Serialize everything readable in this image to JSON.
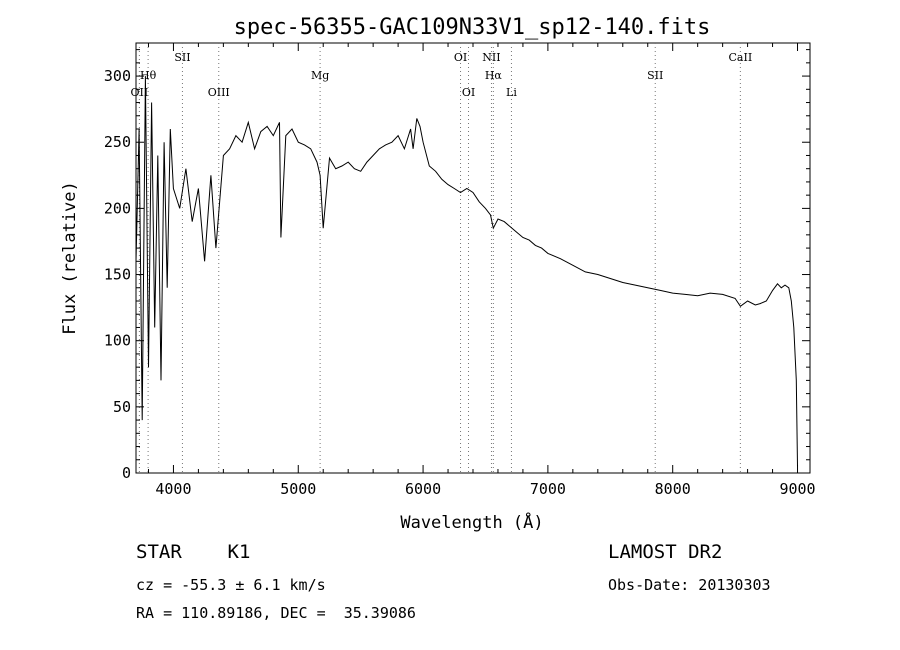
{
  "chart_data": {
    "type": "line",
    "title": "spec-56355-GAC109N33V1_sp12-140.fits",
    "xlabel": "Wavelength (Å)",
    "ylabel": "Flux (relative)",
    "xlim": [
      3700,
      9100
    ],
    "ylim": [
      0,
      325
    ],
    "xticks": [
      4000,
      5000,
      6000,
      7000,
      8000,
      9000
    ],
    "yticks": [
      0,
      50,
      100,
      150,
      200,
      250,
      300
    ],
    "series": [
      {
        "x": [
          3700,
          3725,
          3750,
          3775,
          3800,
          3825,
          3850,
          3875,
          3900,
          3925,
          3950,
          3975,
          4000,
          4050,
          4100,
          4150,
          4200,
          4250,
          4300,
          4340,
          4400,
          4450,
          4500,
          4550,
          4600,
          4650,
          4700,
          4750,
          4800,
          4850,
          4861,
          4900,
          4950,
          5000,
          5050,
          5100,
          5150,
          5175,
          5200,
          5250,
          5300,
          5350,
          5400,
          5450,
          5500,
          5550,
          5600,
          5650,
          5700,
          5750,
          5800,
          5850,
          5900,
          5920,
          5950,
          5975,
          6000,
          6050,
          6100,
          6150,
          6200,
          6250,
          6300,
          6350,
          6400,
          6450,
          6500,
          6540,
          6563,
          6600,
          6650,
          6700,
          6750,
          6800,
          6850,
          6900,
          6950,
          7000,
          7100,
          7200,
          7300,
          7400,
          7500,
          7600,
          7700,
          7800,
          7900,
          8000,
          8100,
          8200,
          8300,
          8400,
          8500,
          8542,
          8600,
          8662,
          8700,
          8750,
          8800,
          8840,
          8870,
          8900,
          8930,
          8950,
          8970,
          8990,
          9000
        ],
        "y": [
          160,
          260,
          40,
          300,
          80,
          280,
          110,
          240,
          70,
          250,
          140,
          260,
          215,
          200,
          230,
          190,
          215,
          160,
          225,
          170,
          240,
          245,
          255,
          250,
          265,
          245,
          258,
          262,
          255,
          265,
          178,
          255,
          260,
          250,
          248,
          245,
          235,
          225,
          185,
          238,
          230,
          232,
          235,
          230,
          228,
          235,
          240,
          245,
          248,
          250,
          255,
          245,
          260,
          245,
          268,
          262,
          250,
          232,
          228,
          222,
          218,
          215,
          212,
          215,
          212,
          205,
          200,
          195,
          185,
          192,
          190,
          186,
          182,
          178,
          176,
          172,
          170,
          166,
          162,
          157,
          152,
          150,
          147,
          144,
          142,
          140,
          138,
          136,
          135,
          134,
          136,
          135,
          132,
          126,
          130,
          127,
          128,
          130,
          138,
          143,
          140,
          142,
          140,
          130,
          110,
          70,
          5
        ]
      }
    ],
    "line_markers": [
      {
        "label": "OII",
        "x": 3727,
        "row": 3
      },
      {
        "label": "Hθ",
        "x": 3797,
        "row": 2
      },
      {
        "label": "SII",
        "x": 4072,
        "row": 1
      },
      {
        "label": "OIII",
        "x": 4363,
        "row": 3
      },
      {
        "label": "Mg",
        "x": 5175,
        "row": 2
      },
      {
        "label": "OI",
        "x": 6300,
        "row": 1
      },
      {
        "label": "OI",
        "x": 6364,
        "row": 3
      },
      {
        "label": "NII",
        "x": 6548,
        "row": 1
      },
      {
        "label": "Hα",
        "x": 6563,
        "row": 2
      },
      {
        "label": "Li",
        "x": 6708,
        "row": 3
      },
      {
        "label": "SII",
        "x": 7860,
        "row": 2
      },
      {
        "label": "CaII",
        "x": 8542,
        "row": 1
      }
    ]
  },
  "info": {
    "class": "STAR    K1",
    "survey": "LAMOST DR2",
    "cz": "cz = -55.3 ± 6.1 km/s",
    "obs_date": "Obs-Date: 20130303",
    "radec": "RA = 110.89186, DEC =  35.39086"
  }
}
